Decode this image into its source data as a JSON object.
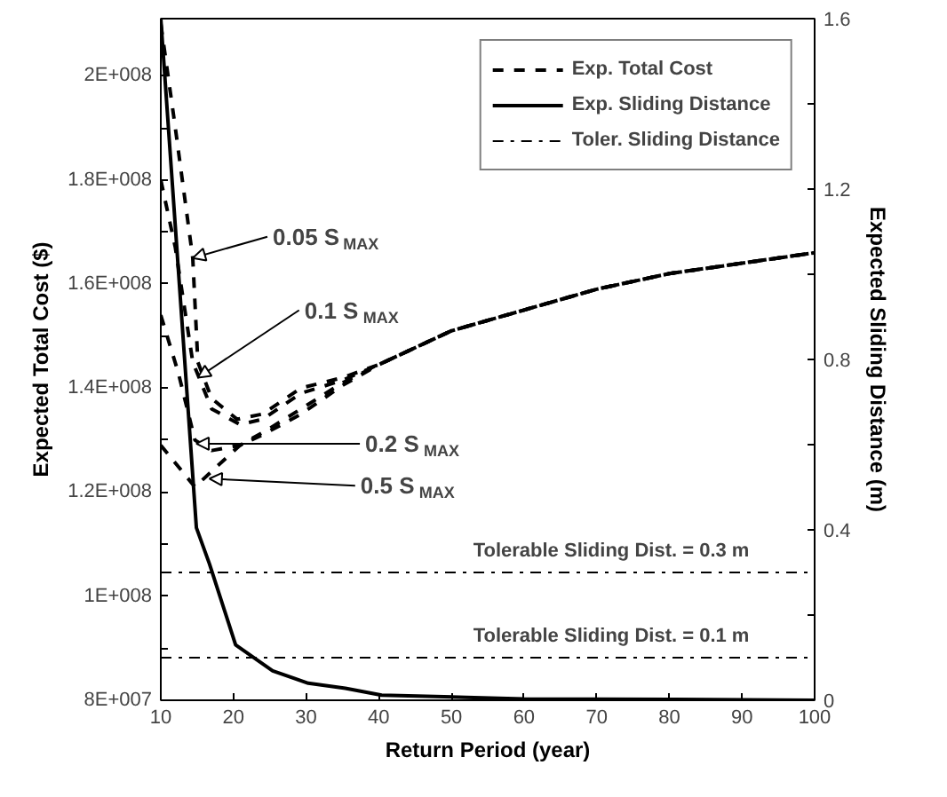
{
  "chart_data": {
    "type": "line",
    "xlabel": "Return Period (year)",
    "ylabel": "Expected Total Cost ($)",
    "y2label": "Expected Sliding Distance (m)",
    "xlim": [
      10,
      100
    ],
    "xticks": [
      10,
      20,
      30,
      40,
      50,
      60,
      70,
      80,
      90,
      100
    ],
    "ylim": [
      80000000,
      211000000
    ],
    "yticks": [
      {
        "value": 80000000,
        "label": "8E+007"
      },
      {
        "value": 90000000,
        "label": null
      },
      {
        "value": 100000000,
        "label": "1E+008"
      },
      {
        "value": 110000000,
        "label": null
      },
      {
        "value": 120000000,
        "label": "1.2E+008"
      },
      {
        "value": 130000000,
        "label": null
      },
      {
        "value": 140000000,
        "label": "1.4E+008"
      },
      {
        "value": 150000000,
        "label": null
      },
      {
        "value": 160000000,
        "label": "1.6E+008"
      },
      {
        "value": 170000000,
        "label": null
      },
      {
        "value": 180000000,
        "label": "1.8E+008"
      },
      {
        "value": 190000000,
        "label": null
      },
      {
        "value": 200000000,
        "label": "2E+008"
      }
    ],
    "y2lim": [
      0,
      1.6
    ],
    "y2ticks": [
      0,
      {
        "value": 0.2,
        "label": null
      },
      0.4,
      {
        "value": 0.6,
        "label": null
      },
      0.8,
      {
        "value": 1.0,
        "label": null
      },
      1.2,
      {
        "value": 1.4,
        "label": null
      },
      1.6
    ],
    "grid": false,
    "legend": "top right",
    "marker": "none",
    "series": [
      {
        "name": "Exp. Total Cost",
        "color": "#000000",
        "line_style": "dashed",
        "x": [
          10,
          12,
          14.4,
          15.1,
          17,
          20.5,
          24,
          29.3,
          35,
          40,
          50,
          60,
          70,
          80,
          90,
          100
        ],
        "values": [
          210000000,
          190000000,
          165000000,
          145000000,
          138000000,
          134000000,
          135000000,
          140000000,
          142000000,
          144500000,
          151000000,
          155000000,
          159000000,
          162000000,
          164000000,
          166000000
        ]
      },
      {
        "color": "#000000",
        "line_style": "dashed",
        "x": [
          10,
          12,
          14.4,
          17,
          20.9,
          24,
          29.3,
          35,
          40,
          50,
          60,
          70,
          80,
          90,
          100
        ],
        "values": [
          180000000,
          167000000,
          145000000,
          136000000,
          133000000,
          134000000,
          139000000,
          141500000,
          144500000,
          151000000,
          155000000,
          159000000,
          162000000,
          164000000,
          166000000
        ]
      },
      {
        "color": "#000000",
        "line_style": "dashed",
        "x": [
          10,
          12.4,
          14.7,
          17,
          20.9,
          24.7,
          29.3,
          35,
          40,
          50,
          60,
          70,
          80,
          90,
          100
        ],
        "values": [
          154000000,
          143000000,
          130000000,
          128000000,
          129000000,
          132000000,
          136000000,
          141000000,
          144500000,
          151000000,
          155000000,
          159000000,
          162000000,
          164000000,
          166000000
        ]
      },
      {
        "color": "#000000",
        "line_style": "dashed",
        "x": [
          10,
          14.7,
          17,
          20.9,
          24,
          29.3,
          35,
          40,
          50,
          60,
          70,
          80,
          90,
          100
        ],
        "values": [
          129000000,
          121000000,
          124000000,
          129000000,
          131000000,
          135000000,
          140500000,
          144500000,
          151000000,
          155000000,
          159000000,
          162000000,
          164000000,
          166000000
        ]
      },
      {
        "name": "Exp. Sliding Distance",
        "color": "#000000",
        "line_style": "solid",
        "axis": "y2",
        "x": [
          10,
          14.9,
          16.7,
          20.3,
          25.4,
          30.3,
          35.4,
          40.4,
          52,
          60,
          80,
          100
        ],
        "values": [
          1.6,
          0.405,
          0.32,
          0.13,
          0.069,
          0.04,
          0.028,
          0.012,
          0.007,
          0.003,
          0.002,
          0
        ]
      },
      {
        "name": "Toler. Sliding Distance",
        "color": "#000000",
        "line_style": "dashdot",
        "axis": "y2",
        "x": [
          10,
          100
        ],
        "values": [
          0.3,
          0.3
        ]
      },
      {
        "color": "#000000",
        "line_style": "dashdot",
        "axis": "y2",
        "x": [
          10,
          100
        ],
        "values": [
          0.1,
          0.1
        ]
      }
    ],
    "annotations": [
      {
        "text": "0.05 S$_{MAX}$",
        "x": 14.4,
        "y": 165000000
      },
      {
        "text": "0.1 S$_{MAX}$",
        "x": 15.1,
        "y": 142000000
      },
      {
        "text": "0.2 S$_{MAX}$",
        "x": 14.9,
        "y": 129300000
      },
      {
        "text": "0.5 S$_{MAX}$",
        "x": 16.7,
        "y": 122600000
      },
      "Tolerable Sliding Dist. = 0.3 m",
      "Tolerable Sliding Dist. = 0.1 m"
    ]
  }
}
